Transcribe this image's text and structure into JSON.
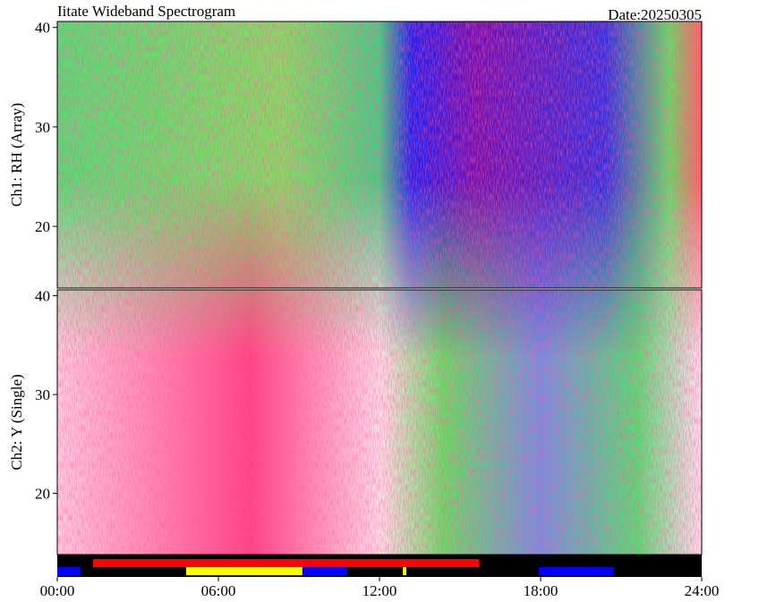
{
  "chart_data": {
    "type": "spectrogram",
    "title": "Iitate Wideband Spectrogram",
    "date_label": "Date:20250305",
    "xlim": [
      0,
      24
    ],
    "xticks": [
      {
        "value": 0,
        "label": "00:00"
      },
      {
        "value": 6,
        "label": "06:00"
      },
      {
        "value": 12,
        "label": "12:00"
      },
      {
        "value": 18,
        "label": "18:00"
      },
      {
        "value": 24,
        "label": "24:00"
      }
    ],
    "panels": [
      {
        "ylabel": "Ch1: RH (Array)",
        "ylim": [
          13.8,
          40.6
        ],
        "yticks": [
          20,
          30,
          40
        ]
      },
      {
        "ylabel": "Ch2: Y (Single)",
        "ylim": [
          13.8,
          40.6
        ],
        "yticks": [
          20,
          30,
          40
        ]
      }
    ],
    "status_rows": [
      {
        "segments": [
          {
            "start": 1.33,
            "end": 15.7,
            "color": "#ff0000"
          }
        ]
      },
      {
        "segments": [
          {
            "start": 0,
            "end": 0.87,
            "color": "#0000ff"
          },
          {
            "start": 4.8,
            "end": 9.13,
            "color": "#ffff00"
          },
          {
            "start": 9.13,
            "end": 10.8,
            "color": "#0000ff"
          },
          {
            "start": 12.87,
            "end": 13.0,
            "color": "#ffff00"
          },
          {
            "start": 17.93,
            "end": 20.7,
            "color": "#0000ff"
          }
        ]
      }
    ]
  }
}
